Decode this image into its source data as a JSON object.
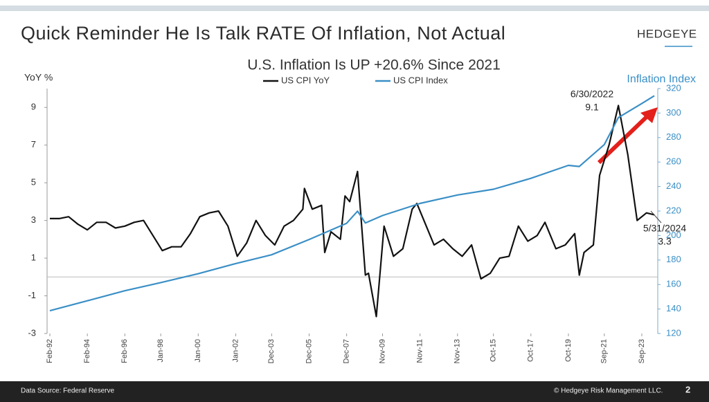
{
  "slide": {
    "title": "Quick Reminder He Is Talk RATE Of Inflation, Not Actual",
    "logo": "HEDGEYE",
    "source": "Data Source: Federal Reserve",
    "copyright": "© Hedgeye Risk Management LLC.",
    "page": "2"
  },
  "chart_data": {
    "type": "line",
    "title": "U.S. Inflation Is UP +20.6% Since 2021",
    "y_label": "YoY %",
    "y2_label": "Inflation Index",
    "xlim": [
      "1992-02",
      "2024-05"
    ],
    "ylim": [
      -3,
      10
    ],
    "yticks": [
      -3,
      -1,
      1,
      3,
      5,
      7,
      9
    ],
    "y2lim": [
      120,
      320
    ],
    "y2ticks": [
      120,
      140,
      160,
      180,
      200,
      220,
      240,
      260,
      280,
      300,
      320
    ],
    "xticks": [
      {
        "value": "1992-02",
        "label": "Feb-92"
      },
      {
        "value": "1994-02",
        "label": "Feb-94"
      },
      {
        "value": "1996-02",
        "label": "Feb-96"
      },
      {
        "value": "1998-01",
        "label": "Jan-98"
      },
      {
        "value": "2000-01",
        "label": "Jan-00"
      },
      {
        "value": "2002-01",
        "label": "Jan-02"
      },
      {
        "value": "2003-12",
        "label": "Dec-03"
      },
      {
        "value": "2005-12",
        "label": "Dec-05"
      },
      {
        "value": "2007-12",
        "label": "Dec-07"
      },
      {
        "value": "2009-11",
        "label": "Nov-09"
      },
      {
        "value": "2011-11",
        "label": "Nov-11"
      },
      {
        "value": "2013-11",
        "label": "Nov-13"
      },
      {
        "value": "2015-10",
        "label": "Oct-15"
      },
      {
        "value": "2017-10",
        "label": "Oct-17"
      },
      {
        "value": "2019-10",
        "label": "Oct-19"
      },
      {
        "value": "2021-09",
        "label": "Sep-21"
      },
      {
        "value": "2023-09",
        "label": "Sep-23"
      }
    ],
    "series": [
      {
        "name": "US CPI YoY",
        "color": "#111111",
        "x": [
          "1992-02",
          "1992-08",
          "1993-02",
          "1993-08",
          "1994-02",
          "1994-08",
          "1995-02",
          "1995-08",
          "1996-02",
          "1996-08",
          "1997-02",
          "1997-08",
          "1998-02",
          "1998-08",
          "1999-02",
          "1999-08",
          "2000-02",
          "2000-08",
          "2001-02",
          "2001-08",
          "2002-02",
          "2002-08",
          "2003-02",
          "2003-08",
          "2004-02",
          "2004-08",
          "2005-02",
          "2005-08",
          "2005-09",
          "2006-02",
          "2006-08",
          "2006-10",
          "2007-02",
          "2007-08",
          "2007-11",
          "2008-02",
          "2008-07",
          "2008-12",
          "2009-02",
          "2009-07",
          "2009-12",
          "2010-06",
          "2010-12",
          "2011-06",
          "2011-09",
          "2012-02",
          "2012-08",
          "2013-02",
          "2013-08",
          "2014-02",
          "2014-08",
          "2015-02",
          "2015-08",
          "2016-02",
          "2016-08",
          "2017-02",
          "2017-08",
          "2018-02",
          "2018-07",
          "2019-02",
          "2019-08",
          "2020-02",
          "2020-05",
          "2020-08",
          "2021-02",
          "2021-06",
          "2021-12",
          "2022-06",
          "2022-12",
          "2023-06",
          "2023-12",
          "2024-05"
        ],
        "values": [
          3.1,
          3.1,
          3.2,
          2.8,
          2.5,
          2.9,
          2.9,
          2.6,
          2.7,
          2.9,
          3.0,
          2.2,
          1.4,
          1.6,
          1.6,
          2.3,
          3.2,
          3.4,
          3.5,
          2.7,
          1.1,
          1.8,
          3.0,
          2.2,
          1.7,
          2.7,
          3.0,
          3.6,
          4.7,
          3.6,
          3.8,
          1.3,
          2.4,
          2.0,
          4.3,
          4.0,
          5.6,
          0.1,
          0.2,
          -2.1,
          2.7,
          1.1,
          1.5,
          3.6,
          3.9,
          2.9,
          1.7,
          2.0,
          1.5,
          1.1,
          1.7,
          -0.1,
          0.2,
          1.0,
          1.1,
          2.7,
          1.9,
          2.2,
          2.9,
          1.5,
          1.7,
          2.3,
          0.1,
          1.3,
          1.7,
          5.4,
          7.0,
          9.1,
          6.5,
          3.0,
          3.4,
          3.3
        ]
      },
      {
        "name": "US CPI Index",
        "color": "#3a8fc6",
        "axis": "y2",
        "x": [
          "1992-02",
          "1994-02",
          "1996-02",
          "1998-01",
          "2000-01",
          "2002-01",
          "2003-12",
          "2005-12",
          "2007-12",
          "2008-07",
          "2008-12",
          "2009-11",
          "2011-11",
          "2013-11",
          "2015-10",
          "2017-10",
          "2019-10",
          "2020-05",
          "2021-09",
          "2022-06",
          "2023-09",
          "2024-05"
        ],
        "values": [
          138.6,
          146.7,
          154.9,
          161.6,
          168.8,
          177.1,
          184.3,
          196.8,
          210.0,
          219.9,
          210.2,
          216.3,
          226.2,
          233.1,
          237.8,
          246.7,
          257.3,
          256.4,
          274.3,
          296.3,
          307.8,
          314.1
        ]
      }
    ],
    "annotations": [
      {
        "date": "6/30/2022",
        "value": 9.1
      },
      {
        "date": "5/31/2024",
        "value": 3.3
      }
    ]
  }
}
